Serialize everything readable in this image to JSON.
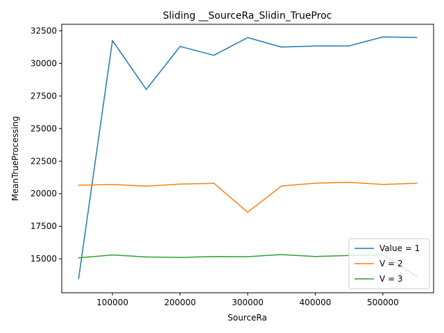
{
  "chart_data": {
    "type": "line",
    "title": "Sliding __SourceRa_Slidin_TrueProc",
    "xlabel": "SourceRa",
    "ylabel": "MeanTrueProcessing",
    "xlim": [
      25000,
      575000
    ],
    "ylim": [
      12400,
      33000
    ],
    "xticks": [
      100000,
      200000,
      300000,
      400000,
      500000
    ],
    "yticks": [
      15000,
      17500,
      20000,
      22500,
      25000,
      27500,
      30000,
      32500
    ],
    "grid": false,
    "legend_position": "lower-right",
    "x": [
      50000,
      100000,
      150000,
      200000,
      250000,
      300000,
      350000,
      400000,
      450000,
      500000,
      550000
    ],
    "series": [
      {
        "name": "Value = 1",
        "color": "#1f77b4",
        "values": [
          13500,
          31750,
          28000,
          31300,
          30620,
          31980,
          31250,
          31340,
          31340,
          32030,
          31990
        ]
      },
      {
        "name": "V = 2",
        "color": "#ff7f0e",
        "values": [
          20650,
          20710,
          20580,
          20740,
          20800,
          18580,
          20590,
          20810,
          20870,
          20710,
          20800
        ]
      },
      {
        "name": "V = 3",
        "color": "#2ca02c",
        "values": [
          15080,
          15300,
          15150,
          15110,
          15180,
          15170,
          15330,
          15180,
          15260,
          15320,
          13650
        ]
      }
    ]
  }
}
